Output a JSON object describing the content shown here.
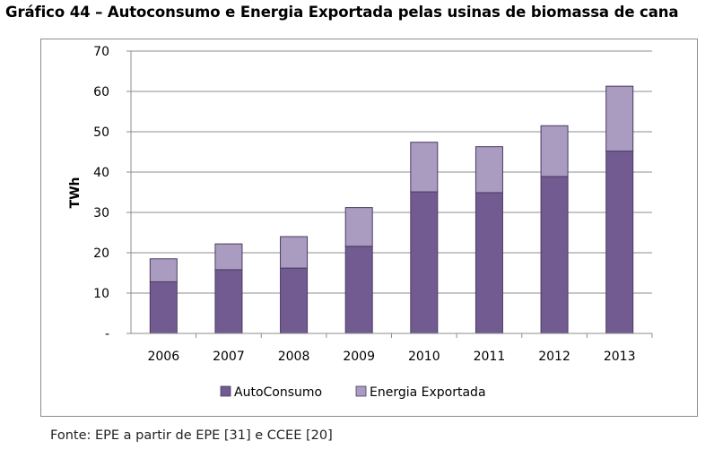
{
  "title": "Gráfico 44 – Autoconsumo e Energia Exportada pelas usinas de biomassa de cana",
  "source": "Fonte: EPE a partir de EPE [31] e CCEE [20]",
  "chart_data": {
    "type": "bar",
    "stacked": true,
    "categories": [
      "2006",
      "2007",
      "2008",
      "2009",
      "2010",
      "2011",
      "2012",
      "2013"
    ],
    "series": [
      {
        "name": "AutoConsumo",
        "color": "#725b91",
        "values": [
          12.8,
          15.8,
          16.2,
          21.6,
          35.1,
          34.9,
          38.9,
          45.2
        ]
      },
      {
        "name": "Energia Exportada",
        "color": "#a99cc0",
        "values": [
          5.7,
          6.4,
          7.8,
          9.6,
          12.3,
          11.4,
          12.6,
          16.1
        ]
      }
    ],
    "ylabel": "TWh",
    "xlabel": "",
    "ylim": [
      0,
      70
    ],
    "yticks": [
      "-",
      "10",
      "20",
      "30",
      "40",
      "50",
      "60",
      "70"
    ],
    "grid": true,
    "legend": "bottom"
  }
}
